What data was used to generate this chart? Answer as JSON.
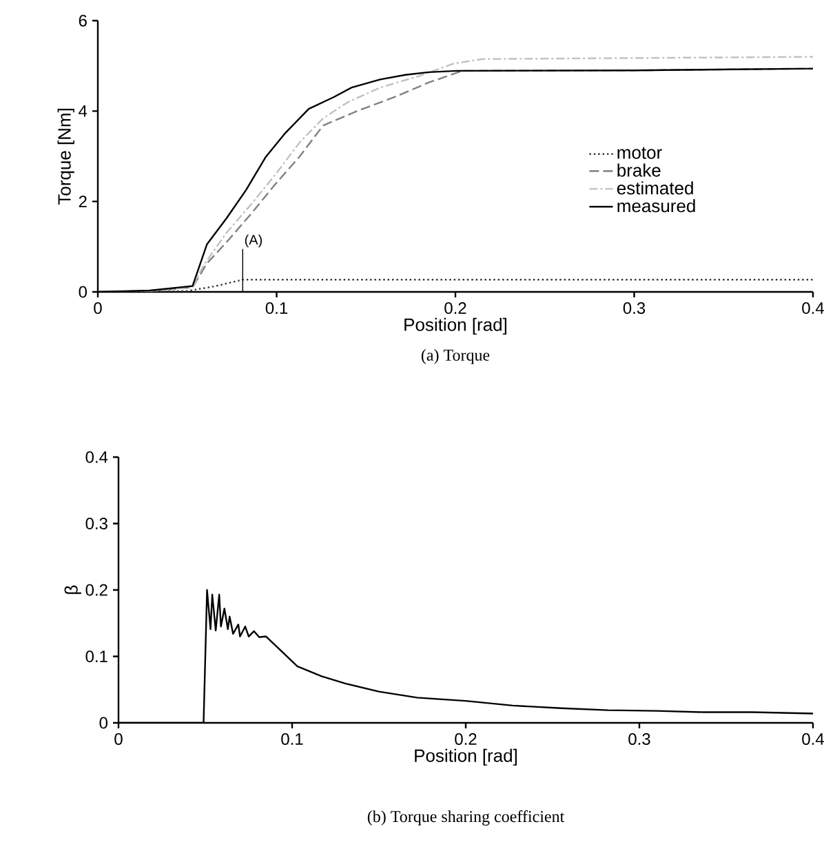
{
  "chart_data": [
    {
      "type": "line",
      "title": "(a)  Torque",
      "xlabel": "Position [rad]",
      "ylabel": "Torque [Nm]",
      "xlim": [
        0,
        0.4
      ],
      "ylim": [
        0,
        6
      ],
      "xticks": [
        0,
        0.1,
        0.2,
        0.3,
        0.4
      ],
      "yticks": [
        0,
        2,
        4,
        6
      ],
      "legend": "right",
      "annotations": [
        "(A)"
      ],
      "series": [
        {
          "name": "motor",
          "color": "#333333",
          "line_style": "dotted",
          "x": [
            0,
            0.03,
            0.05,
            0.065,
            0.081,
            0.4
          ],
          "values": [
            0,
            0,
            0.02,
            0.12,
            0.27,
            0.27
          ]
        },
        {
          "name": "brake",
          "color": "#808080",
          "line_style": "dashed",
          "x": [
            0,
            0.03,
            0.053,
            0.061,
            0.072,
            0.086,
            0.099,
            0.113,
            0.126,
            0.145,
            0.166,
            0.185,
            0.204,
            0.3,
            0.4
          ],
          "values": [
            0,
            0.02,
            0.1,
            0.63,
            1.1,
            1.74,
            2.37,
            3.0,
            3.68,
            4.0,
            4.31,
            4.63,
            4.89,
            4.9,
            4.94
          ]
        },
        {
          "name": "estimated",
          "color": "#c0c0c0",
          "line_style": "dashdotted",
          "x": [
            0,
            0.03,
            0.053,
            0.059,
            0.072,
            0.086,
            0.099,
            0.113,
            0.126,
            0.14,
            0.158,
            0.18,
            0.199,
            0.215,
            0.4
          ],
          "values": [
            0,
            0.02,
            0.1,
            0.58,
            1.31,
            1.95,
            2.58,
            3.31,
            3.84,
            4.2,
            4.52,
            4.78,
            5.05,
            5.15,
            5.2
          ]
        },
        {
          "name": "measured",
          "color": "#000000",
          "line_style": "solid",
          "x": [
            0,
            0.029,
            0.053,
            0.061,
            0.072,
            0.083,
            0.094,
            0.105,
            0.118,
            0.132,
            0.142,
            0.158,
            0.172,
            0.185,
            0.201,
            0.3,
            0.4
          ],
          "values": [
            0,
            0.03,
            0.13,
            1.05,
            1.63,
            2.26,
            2.99,
            3.52,
            4.05,
            4.31,
            4.52,
            4.7,
            4.8,
            4.86,
            4.89,
            4.9,
            4.94
          ]
        }
      ]
    },
    {
      "type": "line",
      "title": "(b)  Torque sharing coefficient",
      "xlabel": "Position [rad]",
      "ylabel": "β",
      "xlim": [
        0,
        0.4
      ],
      "ylim": [
        0,
        0.4
      ],
      "xticks": [
        0,
        0.1,
        0.2,
        0.3,
        0.4
      ],
      "yticks": [
        0,
        0.1,
        0.2,
        0.3,
        0.4
      ],
      "series": [
        {
          "color": "#000000",
          "line_style": "solid",
          "x": [
            0,
            0.049,
            0.051,
            0.053,
            0.054,
            0.056,
            0.058,
            0.059,
            0.061,
            0.063,
            0.064,
            0.066,
            0.069,
            0.07,
            0.073,
            0.075,
            0.078,
            0.081,
            0.085,
            0.095,
            0.103,
            0.117,
            0.131,
            0.15,
            0.172,
            0.2,
            0.227,
            0.255,
            0.282,
            0.31,
            0.337,
            0.365,
            0.4
          ],
          "values": [
            0,
            0,
            0.2,
            0.141,
            0.193,
            0.139,
            0.193,
            0.145,
            0.172,
            0.141,
            0.16,
            0.134,
            0.148,
            0.13,
            0.145,
            0.13,
            0.138,
            0.129,
            0.13,
            0.105,
            0.085,
            0.07,
            0.059,
            0.047,
            0.038,
            0.033,
            0.026,
            0.022,
            0.019,
            0.018,
            0.016,
            0.016,
            0.014
          ]
        }
      ]
    }
  ]
}
